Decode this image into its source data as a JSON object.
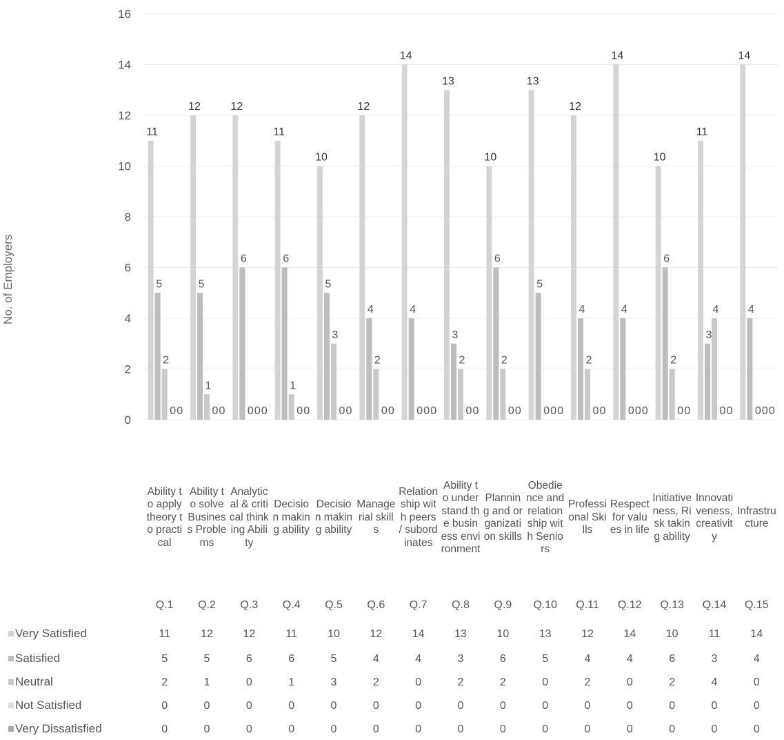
{
  "chart_data": {
    "type": "bar",
    "ylabel": "No. of Employers",
    "ylim": [
      0,
      16
    ],
    "yticks": [
      "0",
      "2",
      "4",
      "6",
      "8",
      "10",
      "12",
      "14",
      "16"
    ],
    "categories": [
      "Ability to apply theory to practical",
      "Ability to solve Business Problems",
      "Analytical & critical thinking Ability",
      "Decision making ability",
      "Decision making ability",
      "Managerial skills",
      "Relationship with peers / subordinates",
      "Ability to understand the business environment",
      "Planning and organization skills",
      "Obedience and relationship with Seniors",
      "Professional Skills",
      "Respect for values in life",
      "Initiativeness, Risk taking ability",
      "Innovativeness, creativity",
      "Infrastructure"
    ],
    "questions": [
      "Q.1",
      "Q.2",
      "Q.3",
      "Q.4",
      "Q.5",
      "Q.6",
      "Q.7",
      "Q.8",
      "Q.9",
      "Q.10",
      "Q.11",
      "Q.12",
      "Q.13",
      "Q.14",
      "Q.15"
    ],
    "series": [
      {
        "name": "Very Satisfied",
        "color": "#d4d4d4",
        "values": [
          11,
          12,
          12,
          11,
          10,
          12,
          14,
          13,
          10,
          13,
          12,
          14,
          10,
          11,
          14
        ]
      },
      {
        "name": "Satisfied",
        "color": "#bdbdbd",
        "values": [
          5,
          5,
          6,
          6,
          5,
          4,
          4,
          3,
          6,
          5,
          4,
          4,
          6,
          3,
          4
        ]
      },
      {
        "name": "Neutral",
        "color": "#c9c9c9",
        "values": [
          2,
          1,
          0,
          1,
          3,
          2,
          0,
          2,
          2,
          0,
          2,
          0,
          2,
          4,
          0
        ]
      },
      {
        "name": "Not Satisfied",
        "color": "#dddddd",
        "values": [
          0,
          0,
          0,
          0,
          0,
          0,
          0,
          0,
          0,
          0,
          0,
          0,
          0,
          0,
          0
        ]
      },
      {
        "name": "Very Dissatisfied",
        "color": "#a8a8a8",
        "values": [
          0,
          0,
          0,
          0,
          0,
          0,
          0,
          0,
          0,
          0,
          0,
          0,
          0,
          0,
          0
        ]
      }
    ],
    "legend": "data-table-left",
    "grid": true
  }
}
